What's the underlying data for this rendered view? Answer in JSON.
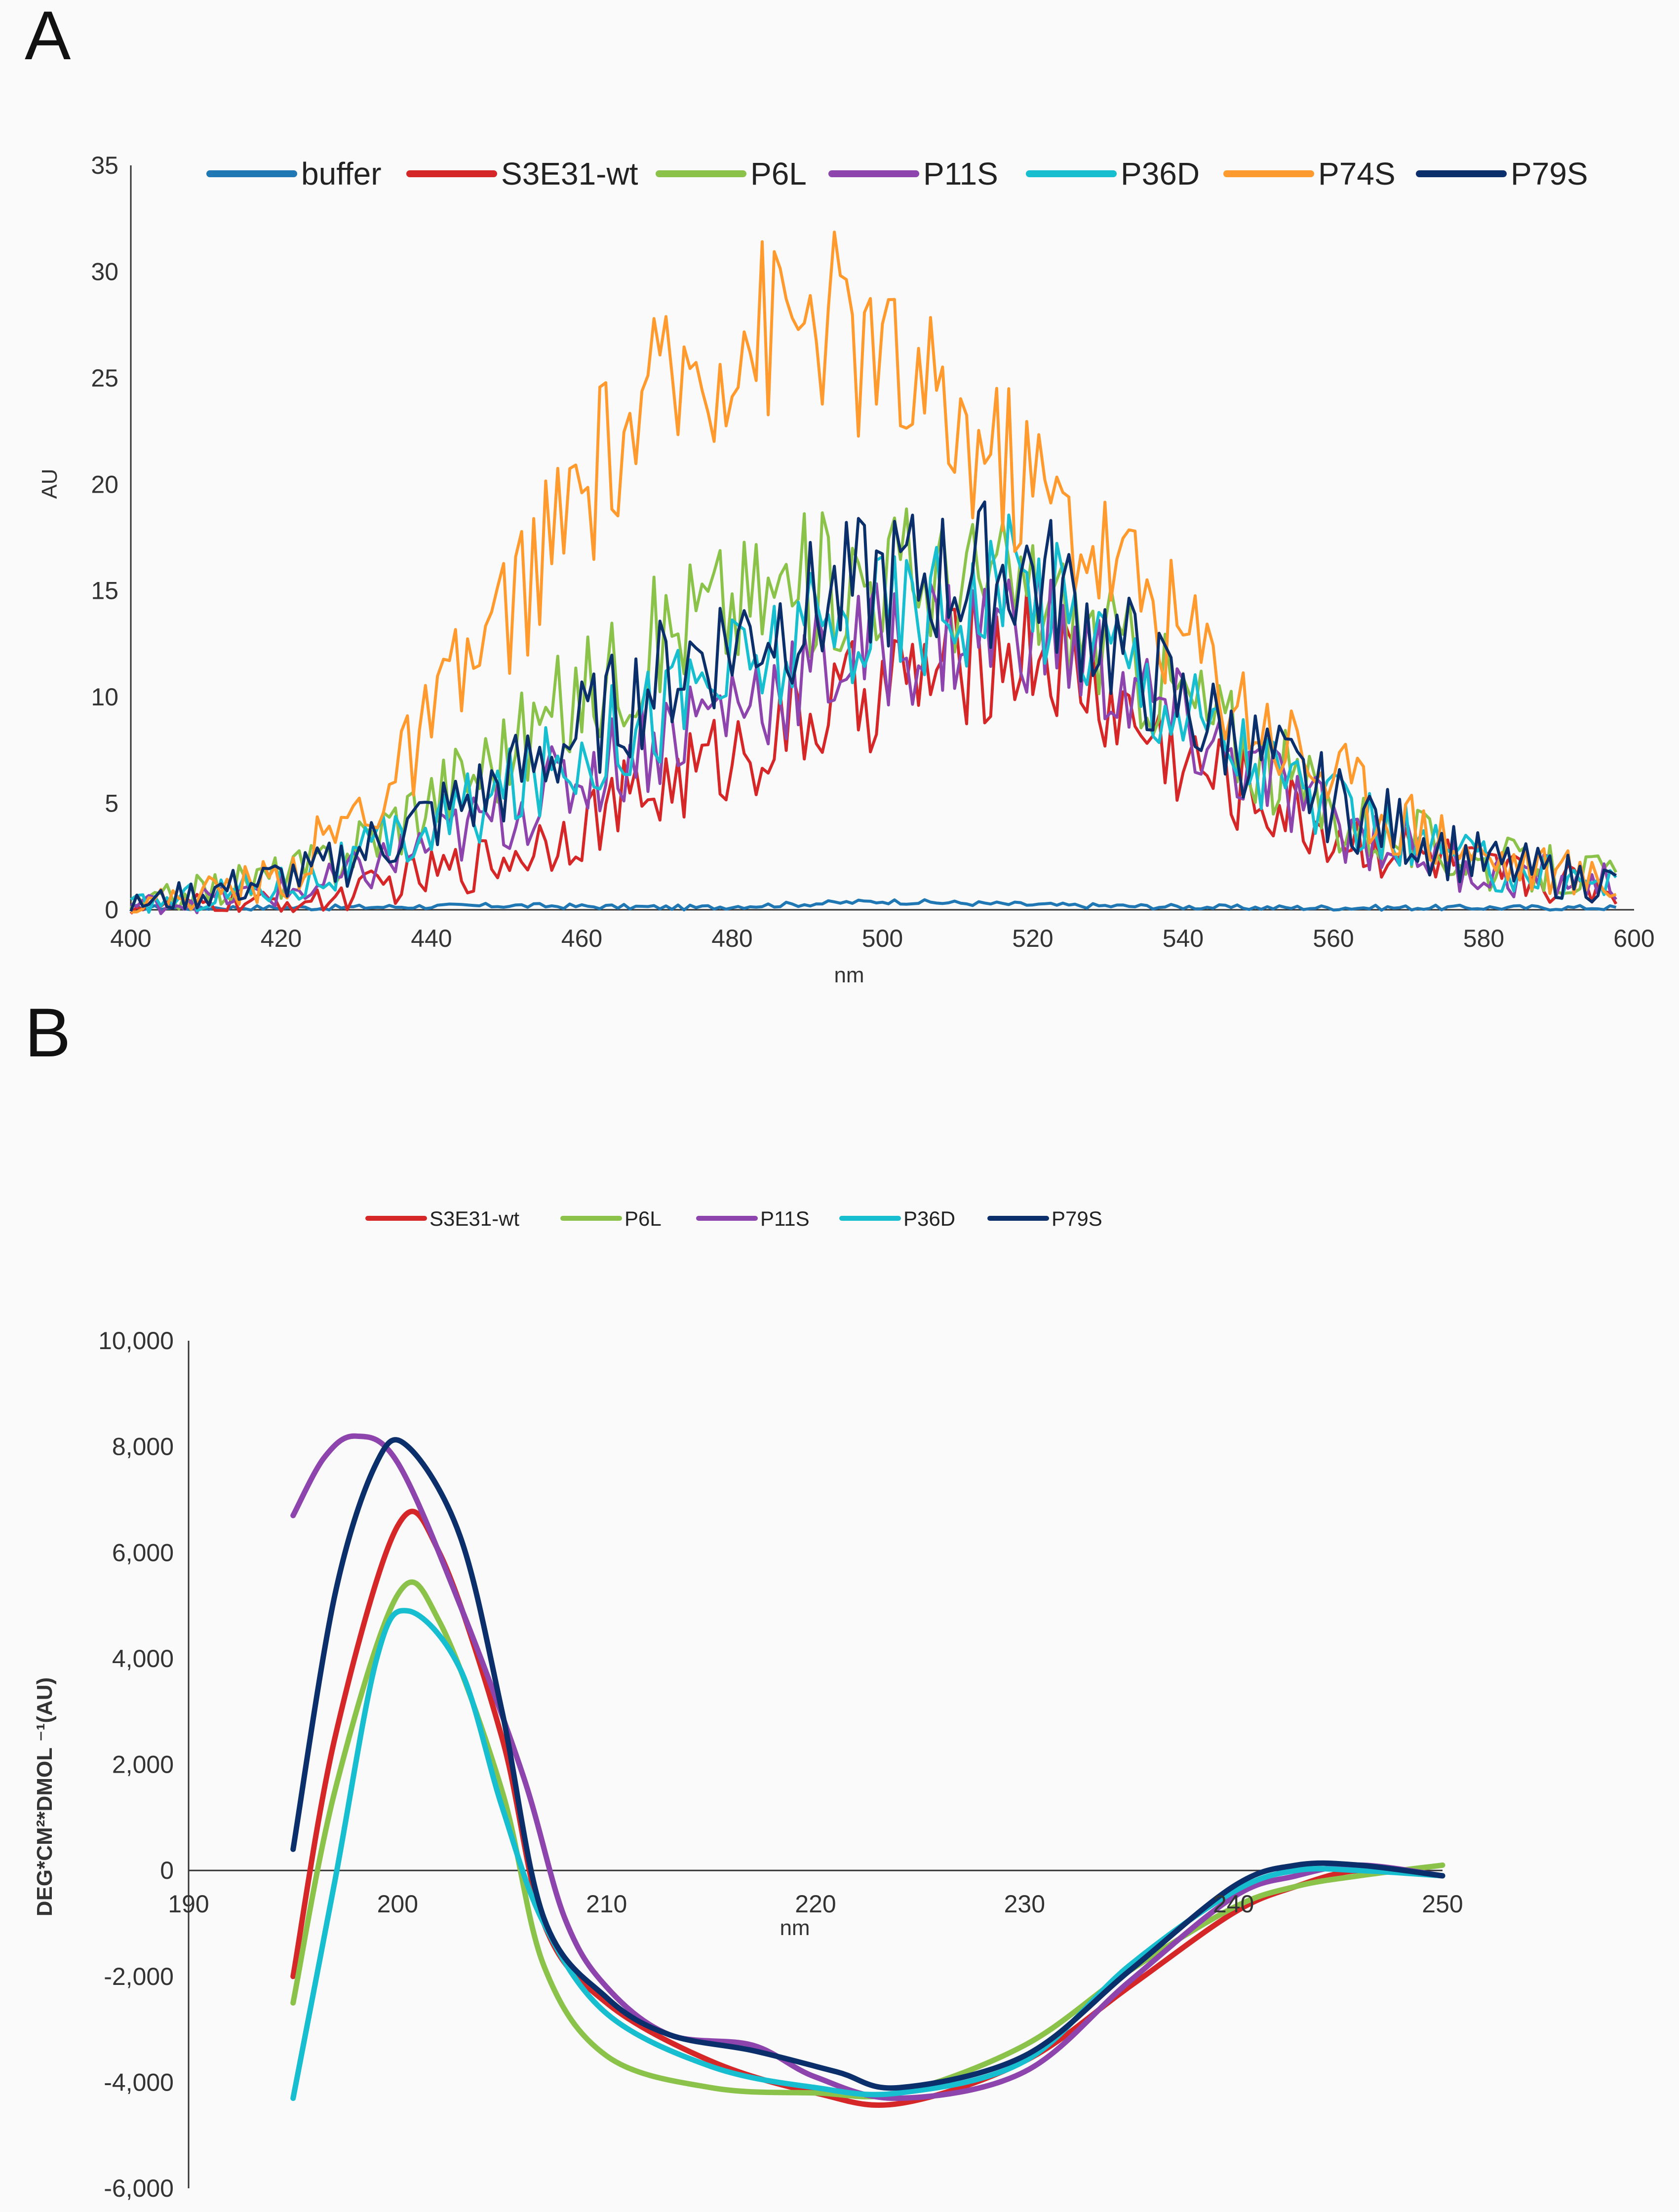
{
  "figure": {
    "panel_a_letter": "A",
    "panel_b_letter": "B"
  },
  "chart_data": [
    {
      "panel": "A",
      "type": "line",
      "title": "",
      "xlabel": "nm",
      "ylabel": "AU",
      "xlim": [
        400,
        600
      ],
      "ylim": [
        0,
        35
      ],
      "xticks": [
        400,
        420,
        440,
        460,
        480,
        500,
        520,
        540,
        560,
        580,
        600
      ],
      "xtick_labels": [
        "400",
        "420",
        "440",
        "460",
        "480",
        "500",
        "520",
        "540",
        "560",
        "580",
        "600"
      ],
      "yticks": [
        0,
        5,
        10,
        15,
        20,
        25,
        30,
        35
      ],
      "ytick_labels": [
        "0",
        "5",
        "10",
        "15",
        "20",
        "25",
        "30",
        "35"
      ],
      "legend_position": "top",
      "series": [
        {
          "name": "buffer",
          "color": "#1f77b4",
          "x": [
            400,
            425,
            450,
            475,
            500,
            525,
            550,
            575,
            598
          ],
          "y": [
            0.1,
            0.1,
            0.2,
            0.1,
            0.4,
            0.2,
            0.1,
            0.1,
            0.1
          ]
        },
        {
          "name": "S3E31-wt",
          "color": "#d62728",
          "x": [
            400,
            425,
            450,
            475,
            500,
            520,
            540,
            560,
            580,
            598
          ],
          "y": [
            0.2,
            0.4,
            2.5,
            6.5,
            10.5,
            12.5,
            7,
            3.5,
            1.8,
            1
          ]
        },
        {
          "name": "P6L",
          "color": "#8bc34a",
          "x": [
            400,
            425,
            450,
            475,
            500,
            520,
            540,
            560,
            580,
            598
          ],
          "y": [
            0.2,
            2,
            7.5,
            14,
            16,
            15,
            10,
            4.5,
            2.2,
            1.5
          ]
        },
        {
          "name": "P11S",
          "color": "#8e44ad",
          "x": [
            400,
            425,
            450,
            475,
            500,
            520,
            540,
            560,
            580,
            598
          ],
          "y": [
            0.2,
            1,
            4.5,
            9,
            12.5,
            13.5,
            8.5,
            4,
            1.8,
            1.2
          ]
        },
        {
          "name": "P36D",
          "color": "#17becf",
          "x": [
            400,
            425,
            450,
            475,
            500,
            520,
            540,
            560,
            580,
            598
          ],
          "y": [
            0.2,
            1.5,
            5.5,
            10.5,
            14,
            15.5,
            9.5,
            4.5,
            2,
            1.2
          ]
        },
        {
          "name": "P74S",
          "color": "#ff9a2e",
          "x": [
            400,
            420,
            435,
            450,
            465,
            480,
            492,
            505,
            520,
            535,
            550,
            565,
            580,
            598
          ],
          "y": [
            0.2,
            1.5,
            6,
            14,
            22,
            27,
            28,
            24,
            20,
            15,
            9,
            5,
            2.5,
            1.2
          ]
        },
        {
          "name": "P79S",
          "color": "#0b2f6b",
          "x": [
            400,
            425,
            450,
            475,
            500,
            520,
            540,
            560,
            580,
            598
          ],
          "y": [
            0.2,
            1.8,
            6,
            12,
            15.5,
            16,
            9.5,
            5,
            2.2,
            1.2
          ]
        }
      ]
    },
    {
      "panel": "B",
      "type": "line",
      "title": "",
      "xlabel": "nm",
      "ylabel": "DEG*CM²*DMOL ⁻¹(AU)",
      "xlim": [
        190,
        250
      ],
      "ylim": [
        -6000,
        10000
      ],
      "xticks": [
        190,
        200,
        210,
        220,
        230,
        240,
        250
      ],
      "xtick_labels": [
        "190",
        "200",
        "210",
        "220",
        "230",
        "240",
        "250"
      ],
      "yticks": [
        -6000,
        -4000,
        -2000,
        0,
        2000,
        4000,
        6000,
        8000,
        10000
      ],
      "ytick_labels": [
        "-6,000",
        "-4,000",
        "-2,000",
        "0",
        "2,000",
        "4,000",
        "6,000",
        "8,000",
        "10,000"
      ],
      "legend_position": "top",
      "series": [
        {
          "name": "S3E31-wt",
          "color": "#d62728",
          "x": [
            195,
            197,
            200,
            202,
            205,
            207,
            210,
            215,
            220,
            224,
            230,
            235,
            240,
            243,
            246,
            250
          ],
          "y": [
            -2000,
            2500,
            6500,
            6000,
            2500,
            -1000,
            -2500,
            -3600,
            -4200,
            -4400,
            -3600,
            -2200,
            -800,
            -300,
            0,
            -100
          ]
        },
        {
          "name": "P6L",
          "color": "#8bc34a",
          "x": [
            195,
            197,
            200,
            202,
            205,
            207,
            210,
            215,
            220,
            224,
            230,
            235,
            240,
            243,
            246,
            250
          ],
          "y": [
            -2500,
            1500,
            5200,
            4700,
            1500,
            -1800,
            -3500,
            -4100,
            -4200,
            -4200,
            -3300,
            -1900,
            -700,
            -300,
            -100,
            100
          ]
        },
        {
          "name": "P11S",
          "color": "#8e44ad",
          "x": [
            195,
            196.5,
            198,
            200,
            203,
            206,
            208,
            210,
            213,
            217,
            220,
            224,
            230,
            235,
            240,
            243,
            246,
            250
          ],
          "y": [
            6700,
            7800,
            8200,
            7700,
            5000,
            1800,
            -900,
            -2200,
            -3100,
            -3300,
            -3900,
            -4300,
            -3800,
            -2100,
            -500,
            -100,
            100,
            -100
          ]
        },
        {
          "name": "P36D",
          "color": "#17becf",
          "x": [
            195,
            197,
            199,
            200.5,
            203,
            205,
            207,
            210,
            215,
            220,
            224,
            230,
            235,
            240,
            243,
            246,
            250
          ],
          "y": [
            -4300,
            -200,
            4000,
            4900,
            3800,
            1200,
            -1000,
            -2700,
            -3700,
            -4100,
            -4200,
            -3600,
            -1800,
            -400,
            0,
            0,
            -100
          ]
        },
        {
          "name": "P79S",
          "color": "#0b2f6b",
          "x": [
            195,
            197,
            199,
            200.5,
            203,
            205,
            207,
            210,
            213,
            217,
            221,
            224,
            230,
            235,
            240,
            243,
            246,
            250
          ],
          "y": [
            400,
            5200,
            7700,
            8000,
            6300,
            3000,
            -900,
            -2400,
            -3100,
            -3400,
            -3800,
            -4100,
            -3500,
            -1900,
            -300,
            100,
            100,
            -100
          ]
        }
      ]
    }
  ]
}
